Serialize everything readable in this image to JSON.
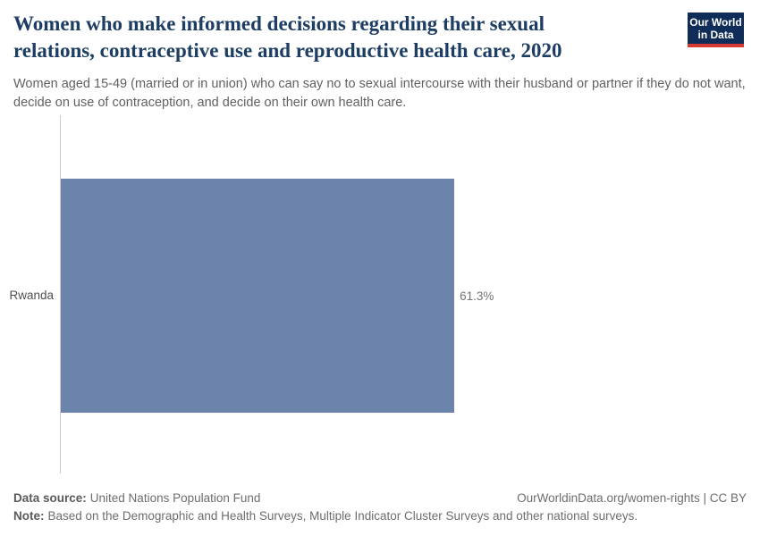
{
  "header": {
    "title": "Women who make informed decisions regarding their sexual relations, contraceptive use and reproductive health care, 2020",
    "subtitle": "Women aged 15-49 (married or in union) who can say no to sexual intercourse with their husband or partner if they do not want, decide on use of contraception, and decide on their own health care.",
    "logo": {
      "line1": "Our World",
      "line2": "in Data",
      "background_color": "#102d59",
      "stripe_color": "#d73a33"
    }
  },
  "chart_data": {
    "type": "bar",
    "orientation": "horizontal",
    "title": "Women who make informed decisions regarding their sexual relations, contraceptive use and reproductive health care, 2020",
    "categories": [
      "Rwanda"
    ],
    "values": [
      61.3
    ],
    "value_labels": [
      "61.3%"
    ],
    "xlabel": "",
    "ylabel": "",
    "xlim": [
      0,
      100
    ],
    "grid": false,
    "legend": "none",
    "bar_color": "#6c84ab",
    "axis_color": "#cccccc"
  },
  "footer": {
    "datasource_label": "Data source:",
    "datasource_value": "United Nations Population Fund",
    "attribution": "OurWorldinData.org/women-rights | CC BY",
    "note_label": "Note:",
    "note_value": "Based on the Demographic and Health Surveys, Multiple Indicator Cluster Surveys and other national surveys."
  }
}
